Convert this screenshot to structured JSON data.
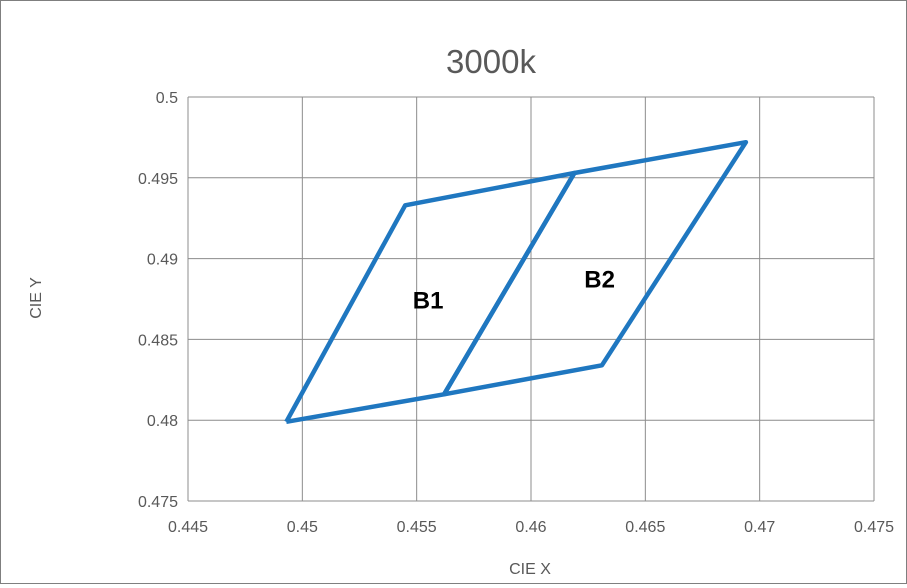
{
  "chart_data": {
    "type": "line",
    "title": "3000k",
    "xlabel": "CIE X",
    "ylabel": "CIE Y",
    "xlim": [
      0.445,
      0.475
    ],
    "ylim": [
      0.475,
      0.5
    ],
    "x_ticks": [
      "0.445",
      "0.45",
      "0.455",
      "0.46",
      "0.465",
      "0.47",
      "0.475"
    ],
    "y_ticks": [
      "0.475",
      "0.48",
      "0.485",
      "0.49",
      "0.495",
      "0.5"
    ],
    "grid": true,
    "line_color": "#1f77c0",
    "series": [
      {
        "name": "B1",
        "points": [
          {
            "x": 0.4493,
            "y": 0.4799
          },
          {
            "x": 0.4562,
            "y": 0.4816
          },
          {
            "x": 0.4619,
            "y": 0.4953
          },
          {
            "x": 0.4545,
            "y": 0.4933
          },
          {
            "x": 0.4493,
            "y": 0.4799
          }
        ]
      },
      {
        "name": "B2",
        "points": [
          {
            "x": 0.4562,
            "y": 0.4816
          },
          {
            "x": 0.4631,
            "y": 0.4834
          },
          {
            "x": 0.4694,
            "y": 0.4972
          },
          {
            "x": 0.4619,
            "y": 0.4953
          },
          {
            "x": 0.4562,
            "y": 0.4816
          }
        ]
      }
    ],
    "annotations": [
      {
        "text": "B1",
        "x": 0.4555,
        "y": 0.4869
      },
      {
        "text": "B2",
        "x": 0.463,
        "y": 0.4882
      }
    ]
  }
}
